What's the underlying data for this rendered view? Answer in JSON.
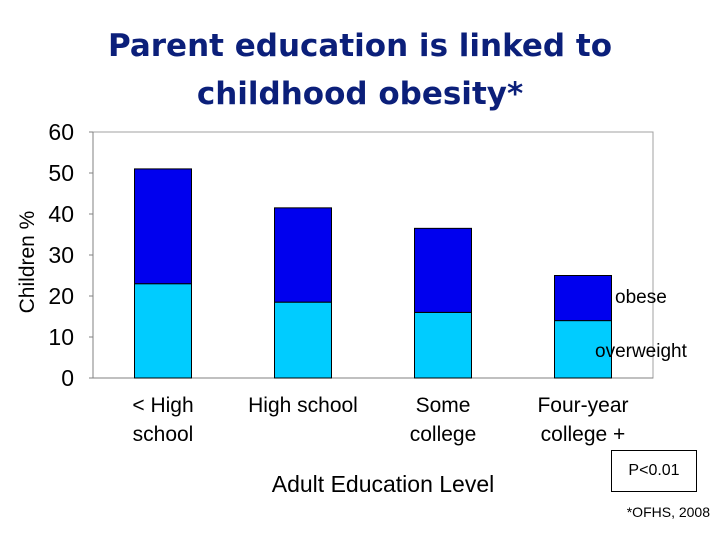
{
  "chart_data": {
    "type": "bar",
    "stacked": true,
    "title": "Parent education is linked to childhood obesity*",
    "title_lines": [
      "Parent education is linked to",
      "childhood obesity*"
    ],
    "xlabel": "Adult Education Level",
    "ylabel": "Children %",
    "ylim": [
      0,
      60
    ],
    "yticks": [
      0,
      10,
      20,
      30,
      40,
      50,
      60
    ],
    "grid": false,
    "categories": [
      [
        "< High",
        "school"
      ],
      [
        "High school"
      ],
      [
        "Some",
        "college"
      ],
      [
        "Four-year",
        "college +"
      ]
    ],
    "series": [
      {
        "name": "overweight",
        "color": "#00ccff",
        "values": [
          23,
          18.5,
          16,
          14
        ]
      },
      {
        "name": "obese",
        "color": "#0000ee",
        "values": [
          28,
          23,
          20.5,
          11
        ]
      }
    ],
    "annotations": {
      "pvalue": "P<0.01",
      "source": "*OFHS, 2008"
    }
  }
}
